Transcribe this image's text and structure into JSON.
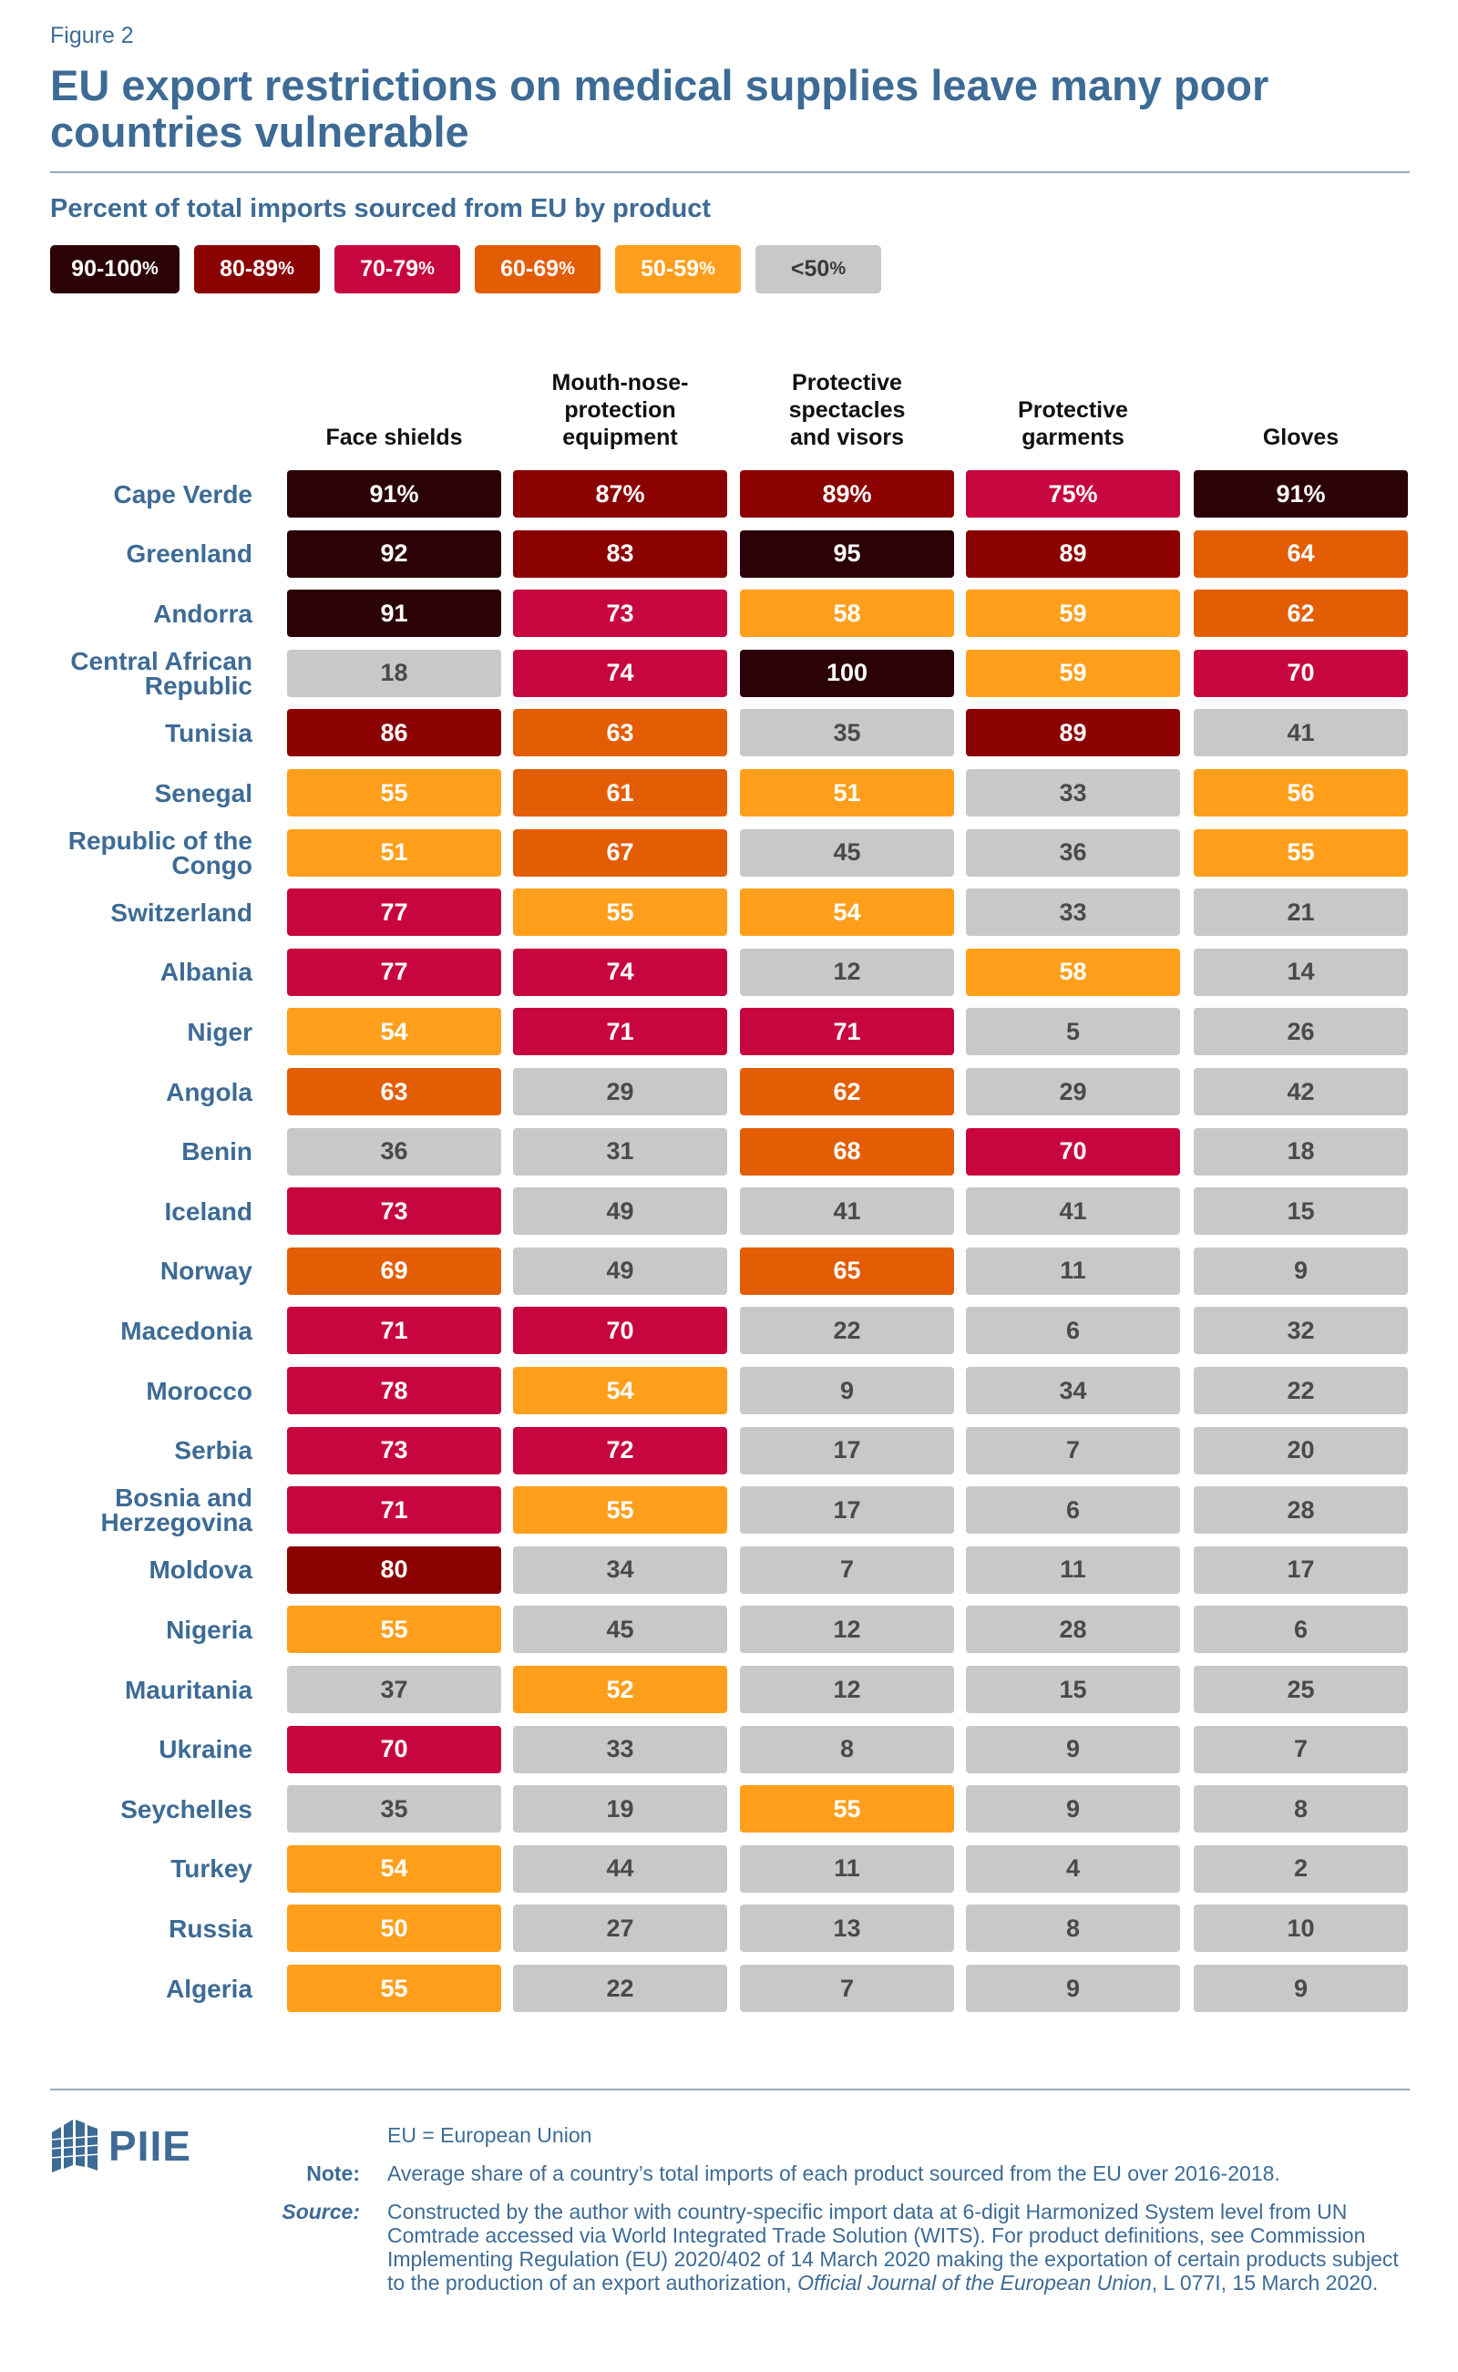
{
  "header": {
    "figure_label": "Figure 2",
    "title": "EU export restrictions on medical supplies leave many poor countries vulnerable",
    "subtitle": "Percent of total imports sourced from EU by product"
  },
  "legend": [
    {
      "label": "90-100",
      "suffix": "%",
      "color": "#2b0307"
    },
    {
      "label": "80-89",
      "suffix": "%",
      "color": "#8b0000"
    },
    {
      "label": "70-79",
      "suffix": "%",
      "color": "#c7063f"
    },
    {
      "label": "60-69",
      "suffix": "%",
      "color": "#e35d05"
    },
    {
      "label": "50-59",
      "suffix": "%",
      "color": "#ff9f1c"
    },
    {
      "label": "<50",
      "suffix": "%",
      "color": "#c8c8c8"
    }
  ],
  "chart_data": {
    "type": "heatmap",
    "title": "EU export restrictions on medical supplies leave many poor countries vulnerable",
    "subtitle": "Percent of total imports sourced from EU by product",
    "columns": [
      "Face shields",
      "Mouth-nose-protection equipment",
      "Protective spectacles and visors",
      "Protective garments",
      "Gloves"
    ],
    "rows": [
      "Cape Verde",
      "Greenland",
      "Andorra",
      "Central African Republic",
      "Tunisia",
      "Senegal",
      "Republic of the Congo",
      "Switzerland",
      "Albania",
      "Niger",
      "Angola",
      "Benin",
      "Iceland",
      "Norway",
      "Macedonia",
      "Morocco",
      "Serbia",
      "Bosnia and Herzegovina",
      "Moldova",
      "Nigeria",
      "Mauritania",
      "Ukraine",
      "Seychelles",
      "Turkey",
      "Russia",
      "Algeria"
    ],
    "values": [
      [
        91,
        87,
        89,
        75,
        91
      ],
      [
        92,
        83,
        95,
        89,
        64
      ],
      [
        91,
        73,
        58,
        59,
        62
      ],
      [
        18,
        74,
        100,
        59,
        70
      ],
      [
        86,
        63,
        35,
        89,
        41
      ],
      [
        55,
        61,
        51,
        33,
        56
      ],
      [
        51,
        67,
        45,
        36,
        55
      ],
      [
        77,
        55,
        54,
        33,
        21
      ],
      [
        77,
        74,
        12,
        58,
        14
      ],
      [
        54,
        71,
        71,
        5,
        26
      ],
      [
        63,
        29,
        62,
        29,
        42
      ],
      [
        36,
        31,
        68,
        70,
        18
      ],
      [
        73,
        49,
        41,
        41,
        15
      ],
      [
        69,
        49,
        65,
        11,
        9
      ],
      [
        71,
        70,
        22,
        6,
        32
      ],
      [
        78,
        54,
        9,
        34,
        22
      ],
      [
        73,
        72,
        17,
        7,
        20
      ],
      [
        71,
        55,
        17,
        6,
        28
      ],
      [
        80,
        34,
        7,
        11,
        17
      ],
      [
        55,
        45,
        12,
        28,
        6
      ],
      [
        37,
        52,
        12,
        15,
        25
      ],
      [
        70,
        33,
        8,
        9,
        7
      ],
      [
        35,
        19,
        55,
        9,
        8
      ],
      [
        54,
        44,
        11,
        4,
        2
      ],
      [
        50,
        27,
        13,
        8,
        10
      ],
      [
        55,
        22,
        7,
        9,
        9
      ]
    ],
    "first_row_suffix": "%",
    "color_bins": [
      {
        "min": 90,
        "color": "#2b0307",
        "text": "#ffffff"
      },
      {
        "min": 80,
        "color": "#8b0000",
        "text": "#ffffff"
      },
      {
        "min": 70,
        "color": "#c7063f",
        "text": "#ffffff"
      },
      {
        "min": 60,
        "color": "#e35d05",
        "text": "#ffffff"
      },
      {
        "min": 50,
        "color": "#ff9f1c",
        "text": "#ffffff"
      },
      {
        "min": 0,
        "color": "#c8c8c8",
        "text": "#4a4a4a"
      }
    ]
  },
  "footer": {
    "logo_text": "PIIE",
    "eu_definition": "EU = European Union",
    "note_label": "Note:",
    "note_text": "Average share of a country’s total imports of each product sourced from the EU over 2016-2018.",
    "source_label": "Source:",
    "source_text": "Constructed by the author with country-specific import data at 6-digit Harmonized System level from UN Comtrade accessed via World Integrated Trade Solution (WITS). For product definitions, see Commission Implementing Regulation (EU) 2020/402 of 14 March 2020 making the exportation of certain products subject to the production of an export authorization,",
    "source_journal": "Official Journal of the European Union",
    "source_tail": ", L 077I, 15 March 2020."
  }
}
